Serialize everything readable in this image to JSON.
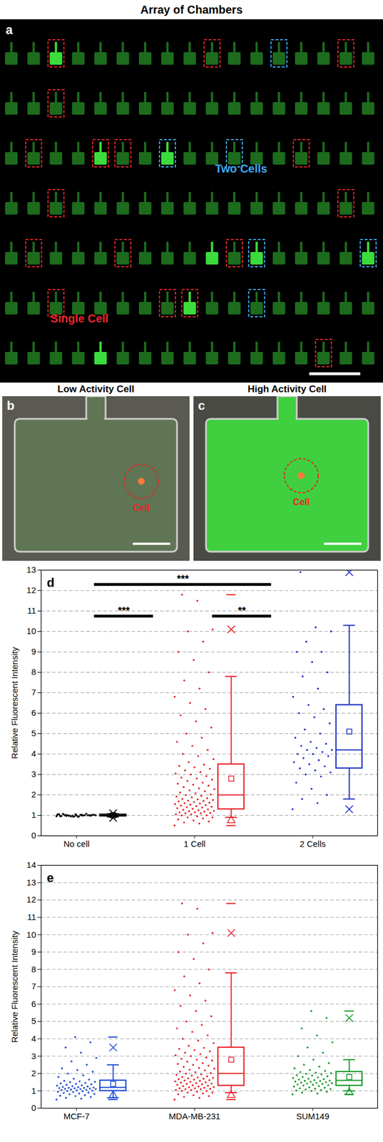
{
  "figure": {
    "title": "Array of Chambers",
    "panel_a": {
      "label": "a",
      "rows": 7,
      "columns": 17,
      "bright": [
        [
          0,
          2
        ],
        [
          2,
          4
        ],
        [
          2,
          7
        ],
        [
          4,
          9
        ],
        [
          4,
          11
        ],
        [
          4,
          16
        ],
        [
          5,
          8
        ],
        [
          6,
          4
        ]
      ],
      "single_cell": [
        [
          0,
          2
        ],
        [
          0,
          9
        ],
        [
          0,
          15
        ],
        [
          1,
          2
        ],
        [
          2,
          1
        ],
        [
          2,
          4
        ],
        [
          2,
          5
        ],
        [
          2,
          13
        ],
        [
          3,
          2
        ],
        [
          3,
          15
        ],
        [
          4,
          1
        ],
        [
          4,
          5
        ],
        [
          4,
          10
        ],
        [
          5,
          2
        ],
        [
          5,
          7
        ],
        [
          5,
          8
        ],
        [
          6,
          14
        ]
      ],
      "two_cells": [
        [
          0,
          12
        ],
        [
          2,
          7
        ],
        [
          2,
          10
        ],
        [
          4,
          11
        ],
        [
          4,
          16
        ],
        [
          5,
          11
        ]
      ],
      "single_cell_label": "Single Cell",
      "two_cells_label": "Two Cells"
    },
    "panel_b": {
      "label": "b",
      "title": "Low Activity Cell",
      "cell_label": "Cell"
    },
    "panel_c": {
      "label": "c",
      "title": "High Activity Cell",
      "cell_label": "Cell"
    }
  },
  "chart_data": [
    {
      "type": "box",
      "panel_label": "d",
      "y_label": "Relative Fluorescent Intensity",
      "categories": [
        "No cell",
        "1 Cell",
        "2 Cells"
      ],
      "colors": [
        "#000000",
        "#e8262a",
        "#1f35c8"
      ],
      "ylim": [
        0,
        13
      ],
      "yticks": [
        0,
        1,
        2,
        3,
        4,
        5,
        6,
        7,
        8,
        9,
        10,
        11,
        12,
        13
      ],
      "grid": true,
      "points": [
        [
          0.95,
          1.0,
          1.02,
          0.98,
          1.05,
          0.97,
          1.01,
          0.99,
          1.03,
          0.96,
          1.04,
          1.0,
          0.93,
          1.06,
          0.99,
          1.01,
          1.02,
          0.98,
          0.97,
          1.08,
          0.94,
          1.0,
          1.03,
          0.99,
          1.01,
          0.96,
          1.05,
          1.0,
          0.98,
          1.02,
          0.92,
          1.07,
          1.0,
          0.99,
          1.01,
          1.03,
          0.97,
          1.0,
          1.04,
          0.95
        ],
        [
          0.5,
          0.6,
          0.65,
          0.7,
          0.75,
          0.8,
          0.85,
          0.9,
          0.9,
          0.95,
          1.0,
          1.0,
          1.05,
          1.05,
          1.1,
          1.1,
          1.12,
          1.15,
          1.15,
          1.18,
          1.2,
          1.22,
          1.25,
          1.27,
          1.29,
          1.32,
          1.35,
          1.38,
          1.4,
          1.42,
          1.45,
          1.48,
          1.5,
          1.52,
          1.55,
          1.58,
          1.6,
          1.62,
          1.65,
          1.68,
          1.7,
          1.72,
          1.75,
          1.78,
          1.8,
          1.84,
          1.88,
          1.92,
          1.95,
          1.99,
          2.02,
          2.08,
          2.12,
          2.18,
          2.22,
          2.28,
          2.32,
          2.38,
          2.45,
          2.5,
          2.55,
          2.6,
          2.68,
          2.75,
          2.8,
          2.85,
          2.92,
          3.0,
          3.05,
          3.12,
          3.2,
          3.28,
          3.35,
          3.42,
          3.48,
          3.6,
          3.75,
          3.9,
          4.0,
          4.2,
          4.4,
          4.6,
          4.8,
          5.0,
          5.3,
          5.6,
          5.9,
          6.2,
          6.5,
          6.8,
          7.2,
          7.6,
          8.0,
          8.6,
          9.0,
          9.5,
          10.0,
          10.1,
          11.5,
          11.8
        ],
        [
          1.3,
          1.6,
          1.8,
          2.0,
          2.3,
          2.6,
          2.9,
          3.0,
          3.1,
          3.2,
          3.3,
          3.4,
          3.5,
          3.6,
          3.7,
          3.8,
          3.9,
          4.0,
          4.0,
          4.1,
          4.2,
          4.2,
          4.3,
          4.4,
          4.5,
          4.6,
          4.8,
          5.0,
          5.2,
          5.5,
          5.8,
          6.0,
          6.2,
          6.4,
          6.8,
          7.2,
          7.8,
          8.0,
          8.5,
          9.0,
          9.0,
          9.5,
          10.0,
          10.2,
          12.9
        ]
      ],
      "boxes": [
        {
          "whisker_low": 0.92,
          "q1": 0.96,
          "median": 1.0,
          "q3": 1.04,
          "whisker_high": 1.08,
          "mean": 1.0,
          "marks": [
            {
              "value": 1.1,
              "marker": "x"
            },
            {
              "value": 0.88,
              "marker": "x"
            }
          ]
        },
        {
          "whisker_low": 0.9,
          "q1": 1.3,
          "median": 2.0,
          "q3": 3.5,
          "whisker_high": 7.8,
          "mean": 2.8,
          "marks": [
            {
              "value": 10.1,
              "marker": "x"
            },
            {
              "value": 11.8,
              "marker": "dash"
            },
            {
              "value": 0.75,
              "marker": "triangle"
            },
            {
              "value": 0.5,
              "marker": "dash"
            }
          ]
        },
        {
          "whisker_low": 1.8,
          "q1": 3.3,
          "median": 4.2,
          "q3": 6.4,
          "whisker_high": 10.3,
          "mean": 5.1,
          "marks": [
            {
              "value": 12.9,
              "marker": "x"
            },
            {
              "value": 1.3,
              "marker": "x"
            }
          ]
        }
      ],
      "annotations": [
        {
          "text": "***",
          "from": "No cell",
          "to": "2 Cells",
          "y": 12.3
        },
        {
          "text": "***",
          "from": "No cell",
          "to": "1 Cell",
          "y": 10.75
        },
        {
          "text": "**",
          "from": "1 Cell",
          "to": "2 Cells",
          "y": 10.75
        }
      ]
    },
    {
      "type": "box",
      "panel_label": "e",
      "y_label": "Relative Fluorescent Intensity",
      "categories": [
        "MCF-7",
        "MDA-MB-231",
        "SUM149"
      ],
      "colors": [
        "#1f4fd8",
        "#e8262a",
        "#1a9a2a"
      ],
      "ylim": [
        0,
        14
      ],
      "yticks": [
        0,
        1,
        2,
        3,
        4,
        5,
        6,
        7,
        8,
        9,
        10,
        11,
        12,
        13,
        14
      ],
      "grid": true,
      "points": [
        [
          0.5,
          0.55,
          0.6,
          0.65,
          0.7,
          0.72,
          0.75,
          0.8,
          0.82,
          0.85,
          0.88,
          0.9,
          0.93,
          0.95,
          0.98,
          1.0,
          1.01,
          1.03,
          1.05,
          1.06,
          1.08,
          1.1,
          1.1,
          1.12,
          1.13,
          1.15,
          1.16,
          1.17,
          1.18,
          1.19,
          1.21,
          1.23,
          1.25,
          1.27,
          1.3,
          1.32,
          1.35,
          1.38,
          1.4,
          1.43,
          1.46,
          1.5,
          1.52,
          1.55,
          1.58,
          1.65,
          1.7,
          1.8,
          1.9,
          2.0,
          2.1,
          2.2,
          2.3,
          2.5,
          2.7,
          2.9,
          3.2,
          3.5,
          3.8,
          4.1
        ],
        [
          0.5,
          0.6,
          0.65,
          0.7,
          0.75,
          0.8,
          0.85,
          0.9,
          0.9,
          0.95,
          1.0,
          1.0,
          1.05,
          1.05,
          1.1,
          1.1,
          1.12,
          1.15,
          1.15,
          1.18,
          1.2,
          1.22,
          1.25,
          1.27,
          1.29,
          1.32,
          1.35,
          1.38,
          1.4,
          1.42,
          1.45,
          1.48,
          1.5,
          1.52,
          1.55,
          1.58,
          1.6,
          1.62,
          1.65,
          1.68,
          1.7,
          1.72,
          1.75,
          1.78,
          1.8,
          1.84,
          1.88,
          1.92,
          1.95,
          1.99,
          2.02,
          2.08,
          2.12,
          2.18,
          2.22,
          2.28,
          2.32,
          2.38,
          2.45,
          2.5,
          2.55,
          2.6,
          2.68,
          2.75,
          2.8,
          2.85,
          2.92,
          3.0,
          3.05,
          3.12,
          3.2,
          3.28,
          3.35,
          3.42,
          3.48,
          3.6,
          3.75,
          3.9,
          4.0,
          4.2,
          4.4,
          4.6,
          4.8,
          5.0,
          5.3,
          5.6,
          5.9,
          6.2,
          6.5,
          6.8,
          7.2,
          7.6,
          8.0,
          8.6,
          9.0,
          9.5,
          10.0,
          10.1,
          11.5,
          11.8
        ],
        [
          0.8,
          0.85,
          0.9,
          0.95,
          1.0,
          1.02,
          1.05,
          1.08,
          1.1,
          1.12,
          1.15,
          1.18,
          1.2,
          1.25,
          1.28,
          1.31,
          1.33,
          1.35,
          1.37,
          1.4,
          1.42,
          1.44,
          1.46,
          1.48,
          1.5,
          1.52,
          1.54,
          1.56,
          1.58,
          1.59,
          1.62,
          1.65,
          1.68,
          1.7,
          1.74,
          1.78,
          1.8,
          1.84,
          1.88,
          1.9,
          1.95,
          1.98,
          2.02,
          2.05,
          2.08,
          2.15,
          2.2,
          2.3,
          2.4,
          2.5,
          2.6,
          2.8,
          3.0,
          3.2,
          3.5,
          3.8,
          4.2,
          4.6,
          5.2,
          5.6
        ]
      ],
      "boxes": [
        {
          "whisker_low": 0.6,
          "q1": 1.0,
          "median": 1.2,
          "q3": 1.6,
          "whisker_high": 2.5,
          "mean": 1.4,
          "marks": [
            {
              "value": 3.5,
              "marker": "x"
            },
            {
              "value": 4.1,
              "marker": "dash"
            },
            {
              "value": 0.75,
              "marker": "triangle"
            },
            {
              "value": 0.5,
              "marker": "dash"
            }
          ]
        },
        {
          "whisker_low": 0.9,
          "q1": 1.3,
          "median": 2.0,
          "q3": 3.5,
          "whisker_high": 7.8,
          "mean": 2.8,
          "marks": [
            {
              "value": 10.1,
              "marker": "x"
            },
            {
              "value": 11.8,
              "marker": "dash"
            },
            {
              "value": 0.75,
              "marker": "triangle"
            },
            {
              "value": 0.5,
              "marker": "dash"
            }
          ]
        },
        {
          "whisker_low": 1.0,
          "q1": 1.3,
          "median": 1.6,
          "q3": 2.1,
          "whisker_high": 2.8,
          "mean": 1.8,
          "marks": [
            {
              "value": 5.2,
              "marker": "x"
            },
            {
              "value": 5.6,
              "marker": "dash"
            },
            {
              "value": 0.9,
              "marker": "triangle"
            },
            {
              "value": 0.8,
              "marker": "dash"
            }
          ]
        }
      ],
      "annotations": []
    }
  ]
}
